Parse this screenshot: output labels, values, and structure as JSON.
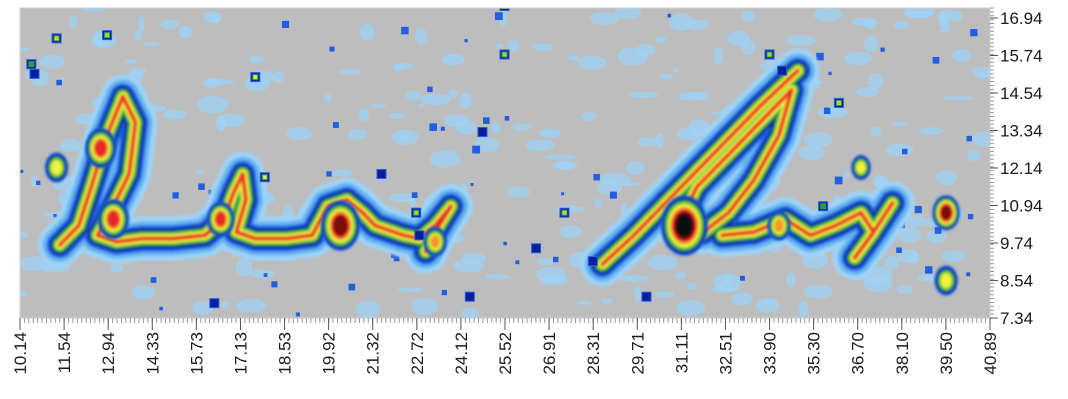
{
  "chart_data": {
    "type": "heatmap",
    "title": "",
    "xlabel": "",
    "ylabel": "",
    "x_ticks": [
      "10.14",
      "11.54",
      "12.94",
      "14.33",
      "15.73",
      "17.13",
      "18.53",
      "19.92",
      "21.32",
      "22.72",
      "24.12",
      "25.52",
      "26.91",
      "28.31",
      "29.71",
      "31.11",
      "32.51",
      "33.90",
      "35.30",
      "36.70",
      "38.10",
      "39.50",
      "40.89"
    ],
    "y_ticks": [
      "16.94",
      "15.74",
      "14.54",
      "13.34",
      "12.14",
      "10.94",
      "9.74",
      "8.54",
      "7.34"
    ],
    "xlim": [
      10.14,
      40.89
    ],
    "ylim": [
      7.34,
      16.94
    ],
    "background_color": "#bdbdbd",
    "colorscale": [
      "#9fd3f7",
      "#63b3f0",
      "#1f5fe0",
      "#0a1e9c",
      "#2e9c3c",
      "#9ad84a",
      "#f2f23c",
      "#f29a2c",
      "#e8262a",
      "#7a0c10",
      "#0a0a0a"
    ],
    "strokes": [
      {
        "name": "first-word-loop",
        "points": [
          [
            11.4,
            9.6
          ],
          [
            12.0,
            10.2
          ],
          [
            12.4,
            11.4
          ],
          [
            12.9,
            13.0
          ],
          [
            13.4,
            14.2
          ],
          [
            13.8,
            13.4
          ],
          [
            13.6,
            11.8
          ],
          [
            13.0,
            10.6
          ],
          [
            12.6,
            9.9
          ],
          [
            13.2,
            9.7
          ],
          [
            14.0,
            9.8
          ]
        ]
      },
      {
        "name": "first-word-tail",
        "points": [
          [
            14.0,
            9.8
          ],
          [
            15.0,
            9.8
          ],
          [
            16.0,
            9.9
          ],
          [
            16.6,
            10.4
          ],
          [
            16.9,
            11.2
          ],
          [
            17.2,
            11.8
          ],
          [
            17.3,
            11.0
          ],
          [
            17.0,
            10.0
          ],
          [
            17.6,
            9.8
          ],
          [
            18.6,
            9.8
          ],
          [
            19.4,
            9.9
          ]
        ]
      },
      {
        "name": "first-word-blob",
        "points": [
          [
            19.4,
            9.9
          ],
          [
            19.9,
            10.8
          ],
          [
            20.5,
            11.0
          ],
          [
            21.0,
            10.6
          ],
          [
            21.4,
            10.2
          ],
          [
            22.3,
            9.9
          ],
          [
            22.8,
            9.8
          ],
          [
            23.3,
            10.2
          ],
          [
            23.8,
            10.8
          ]
        ]
      },
      {
        "name": "first-word-descender",
        "points": [
          [
            23.8,
            10.8
          ],
          [
            23.3,
            10.0
          ],
          [
            23.0,
            9.4
          ]
        ]
      },
      {
        "name": "second-word-stroke",
        "points": [
          [
            28.6,
            9.0
          ],
          [
            29.6,
            9.9
          ],
          [
            30.6,
            10.9
          ],
          [
            31.6,
            11.9
          ],
          [
            32.6,
            12.9
          ],
          [
            33.6,
            13.9
          ],
          [
            34.8,
            15.0
          ]
        ]
      },
      {
        "name": "second-word-loop",
        "points": [
          [
            31.2,
            10.6
          ],
          [
            31.6,
            11.4
          ],
          [
            32.2,
            12.0
          ],
          [
            33.0,
            12.8
          ],
          [
            33.8,
            13.6
          ],
          [
            34.6,
            14.4
          ],
          [
            34.2,
            13.0
          ],
          [
            33.4,
            11.6
          ],
          [
            32.6,
            10.6
          ],
          [
            31.8,
            10.0
          ],
          [
            31.4,
            10.2
          ]
        ]
      },
      {
        "name": "second-word-tail",
        "points": [
          [
            32.4,
            9.9
          ],
          [
            33.4,
            10.0
          ],
          [
            34.4,
            10.4
          ],
          [
            35.2,
            9.9
          ],
          [
            36.0,
            10.2
          ],
          [
            36.8,
            10.6
          ],
          [
            37.2,
            10.0
          ],
          [
            36.6,
            9.2
          ]
        ]
      },
      {
        "name": "second-word-spike",
        "points": [
          [
            36.6,
            9.2
          ],
          [
            37.2,
            10.0
          ],
          [
            37.8,
            10.9
          ]
        ]
      }
    ],
    "hotspots": [
      {
        "x": 31.2,
        "y": 10.2,
        "level": 10,
        "r": 0.6
      },
      {
        "x": 20.3,
        "y": 10.2,
        "level": 9,
        "r": 0.5
      },
      {
        "x": 12.7,
        "y": 12.6,
        "level": 8,
        "r": 0.4
      },
      {
        "x": 13.1,
        "y": 10.4,
        "level": 8,
        "r": 0.4
      },
      {
        "x": 16.5,
        "y": 10.4,
        "level": 8,
        "r": 0.35
      },
      {
        "x": 23.3,
        "y": 9.7,
        "level": 7,
        "r": 0.3
      },
      {
        "x": 34.2,
        "y": 10.2,
        "level": 7,
        "r": 0.3
      },
      {
        "x": 39.5,
        "y": 10.6,
        "level": 9,
        "r": 0.35
      },
      {
        "x": 39.5,
        "y": 8.5,
        "level": 6,
        "r": 0.3
      },
      {
        "x": 11.3,
        "y": 12.0,
        "level": 6,
        "r": 0.3
      },
      {
        "x": 36.8,
        "y": 12.0,
        "level": 6,
        "r": 0.25
      }
    ],
    "specks": [
      {
        "x": 11.3,
        "y": 16.0,
        "level": 8
      },
      {
        "x": 12.9,
        "y": 16.1,
        "level": 5
      },
      {
        "x": 10.5,
        "y": 15.2,
        "level": 4
      },
      {
        "x": 10.6,
        "y": 14.9,
        "level": 3
      },
      {
        "x": 17.6,
        "y": 14.8,
        "level": 6
      },
      {
        "x": 17.9,
        "y": 11.7,
        "level": 6
      },
      {
        "x": 25.5,
        "y": 15.5,
        "level": 5
      },
      {
        "x": 25.5,
        "y": 17.0,
        "level": 6
      },
      {
        "x": 33.9,
        "y": 15.5,
        "level": 5
      },
      {
        "x": 36.1,
        "y": 14.0,
        "level": 8
      },
      {
        "x": 35.6,
        "y": 10.8,
        "level": 4
      },
      {
        "x": 27.4,
        "y": 10.6,
        "level": 8
      },
      {
        "x": 22.7,
        "y": 10.6,
        "level": 5
      },
      {
        "x": 22.8,
        "y": 9.9,
        "level": 3
      },
      {
        "x": 21.6,
        "y": 11.8,
        "level": 3
      },
      {
        "x": 24.8,
        "y": 13.1,
        "level": 3
      },
      {
        "x": 26.5,
        "y": 9.5,
        "level": 3
      },
      {
        "x": 24.4,
        "y": 8.0,
        "level": 3
      },
      {
        "x": 28.3,
        "y": 9.1,
        "level": 3
      },
      {
        "x": 34.3,
        "y": 15.0,
        "level": 3
      },
      {
        "x": 30.0,
        "y": 8.0,
        "level": 3
      },
      {
        "x": 16.3,
        "y": 7.8,
        "level": 3
      }
    ]
  }
}
